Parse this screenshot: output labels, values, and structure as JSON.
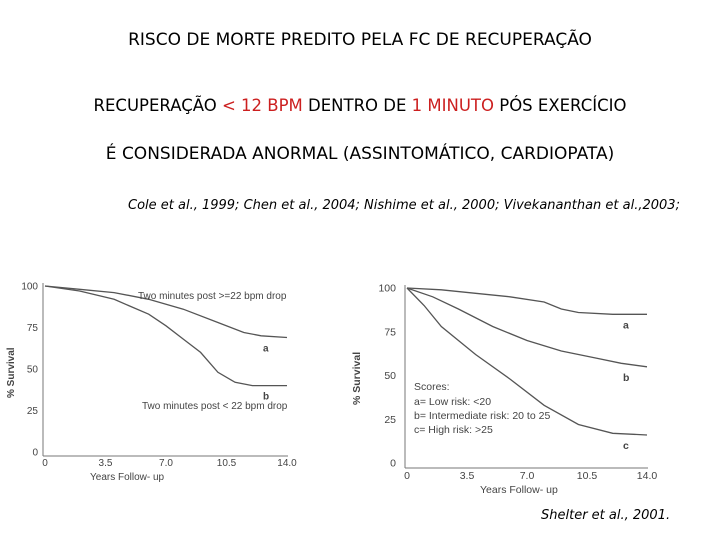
{
  "title": "RISCO DE MORTE PREDITO PELA FC DE RECUPERAÇÃO",
  "statement1": {
    "part1": "RECUPERAÇÃO ",
    "threshold": "< 12 BPM",
    "part2": " DENTRO DE ",
    "time": "1 MINUTO",
    "part3": "  PÓS EXERCÍCIO"
  },
  "statement2": "É CONSIDERADA ANORMAL (ASSINTOMÁTICO, CARDIOPATA)",
  "citation": "Cole et al., 1999; Chen et al., 2004;  Nishime  et al., 2000;  Vivekananthan  et al.,2003;",
  "shelter_citation": "Shelter et al., 2001.",
  "colors": {
    "accent": "#cc1f1f",
    "plot": "#555555",
    "axis": "#777777"
  },
  "chart_data": [
    {
      "type": "line",
      "title": "",
      "xlabel": "Years Follow- up",
      "ylabel": "% Survival",
      "xlim": [
        0,
        14
      ],
      "ylim": [
        0,
        100
      ],
      "x_ticks": [
        "0",
        "3.5",
        "7.0",
        "10.5",
        "14.0"
      ],
      "y_ticks": [
        "0",
        "25",
        "50",
        "75",
        "100"
      ],
      "annotations": [
        "Two minutes post >=22 bpm drop",
        "Two minutes post < 22 bpm drop"
      ],
      "series": [
        {
          "name": "a",
          "x": [
            0,
            2,
            4,
            6,
            8,
            10,
            11.5,
            12.5,
            14
          ],
          "y": [
            100,
            98,
            96,
            92,
            86,
            78,
            72,
            70,
            69
          ]
        },
        {
          "name": "b",
          "x": [
            0,
            2,
            4,
            6,
            7,
            8,
            9,
            10,
            11,
            12,
            14
          ],
          "y": [
            100,
            97,
            92,
            83,
            76,
            68,
            60,
            48,
            42,
            40,
            40
          ]
        }
      ]
    },
    {
      "type": "line",
      "title": "",
      "xlabel": "Years Follow- up",
      "ylabel": "% Survival",
      "xlim": [
        0,
        14
      ],
      "ylim": [
        0,
        100
      ],
      "x_ticks": [
        "0",
        "3.5",
        "7.0",
        "10.5",
        "14.0"
      ],
      "y_ticks": [
        "0",
        "25",
        "50",
        "75",
        "100"
      ],
      "legend_title": "Scores:",
      "legend_items": [
        "a= Low risk: <20",
        "b= Intermediate risk: 20 to 25",
        "c= High risk: >25"
      ],
      "series": [
        {
          "name": "a",
          "x": [
            0,
            2,
            4,
            6,
            8,
            9,
            10,
            12,
            14
          ],
          "y": [
            100,
            99,
            97,
            95,
            92,
            88,
            86,
            85,
            85
          ]
        },
        {
          "name": "b",
          "x": [
            0,
            1.5,
            3,
            5,
            7,
            9,
            11,
            12.5,
            14
          ],
          "y": [
            100,
            95,
            88,
            78,
            70,
            64,
            60,
            57,
            55
          ]
        },
        {
          "name": "c",
          "x": [
            0,
            1,
            2,
            4,
            6,
            8,
            10,
            12,
            14
          ],
          "y": [
            100,
            90,
            78,
            62,
            48,
            33,
            22,
            17,
            16
          ]
        }
      ]
    }
  ]
}
